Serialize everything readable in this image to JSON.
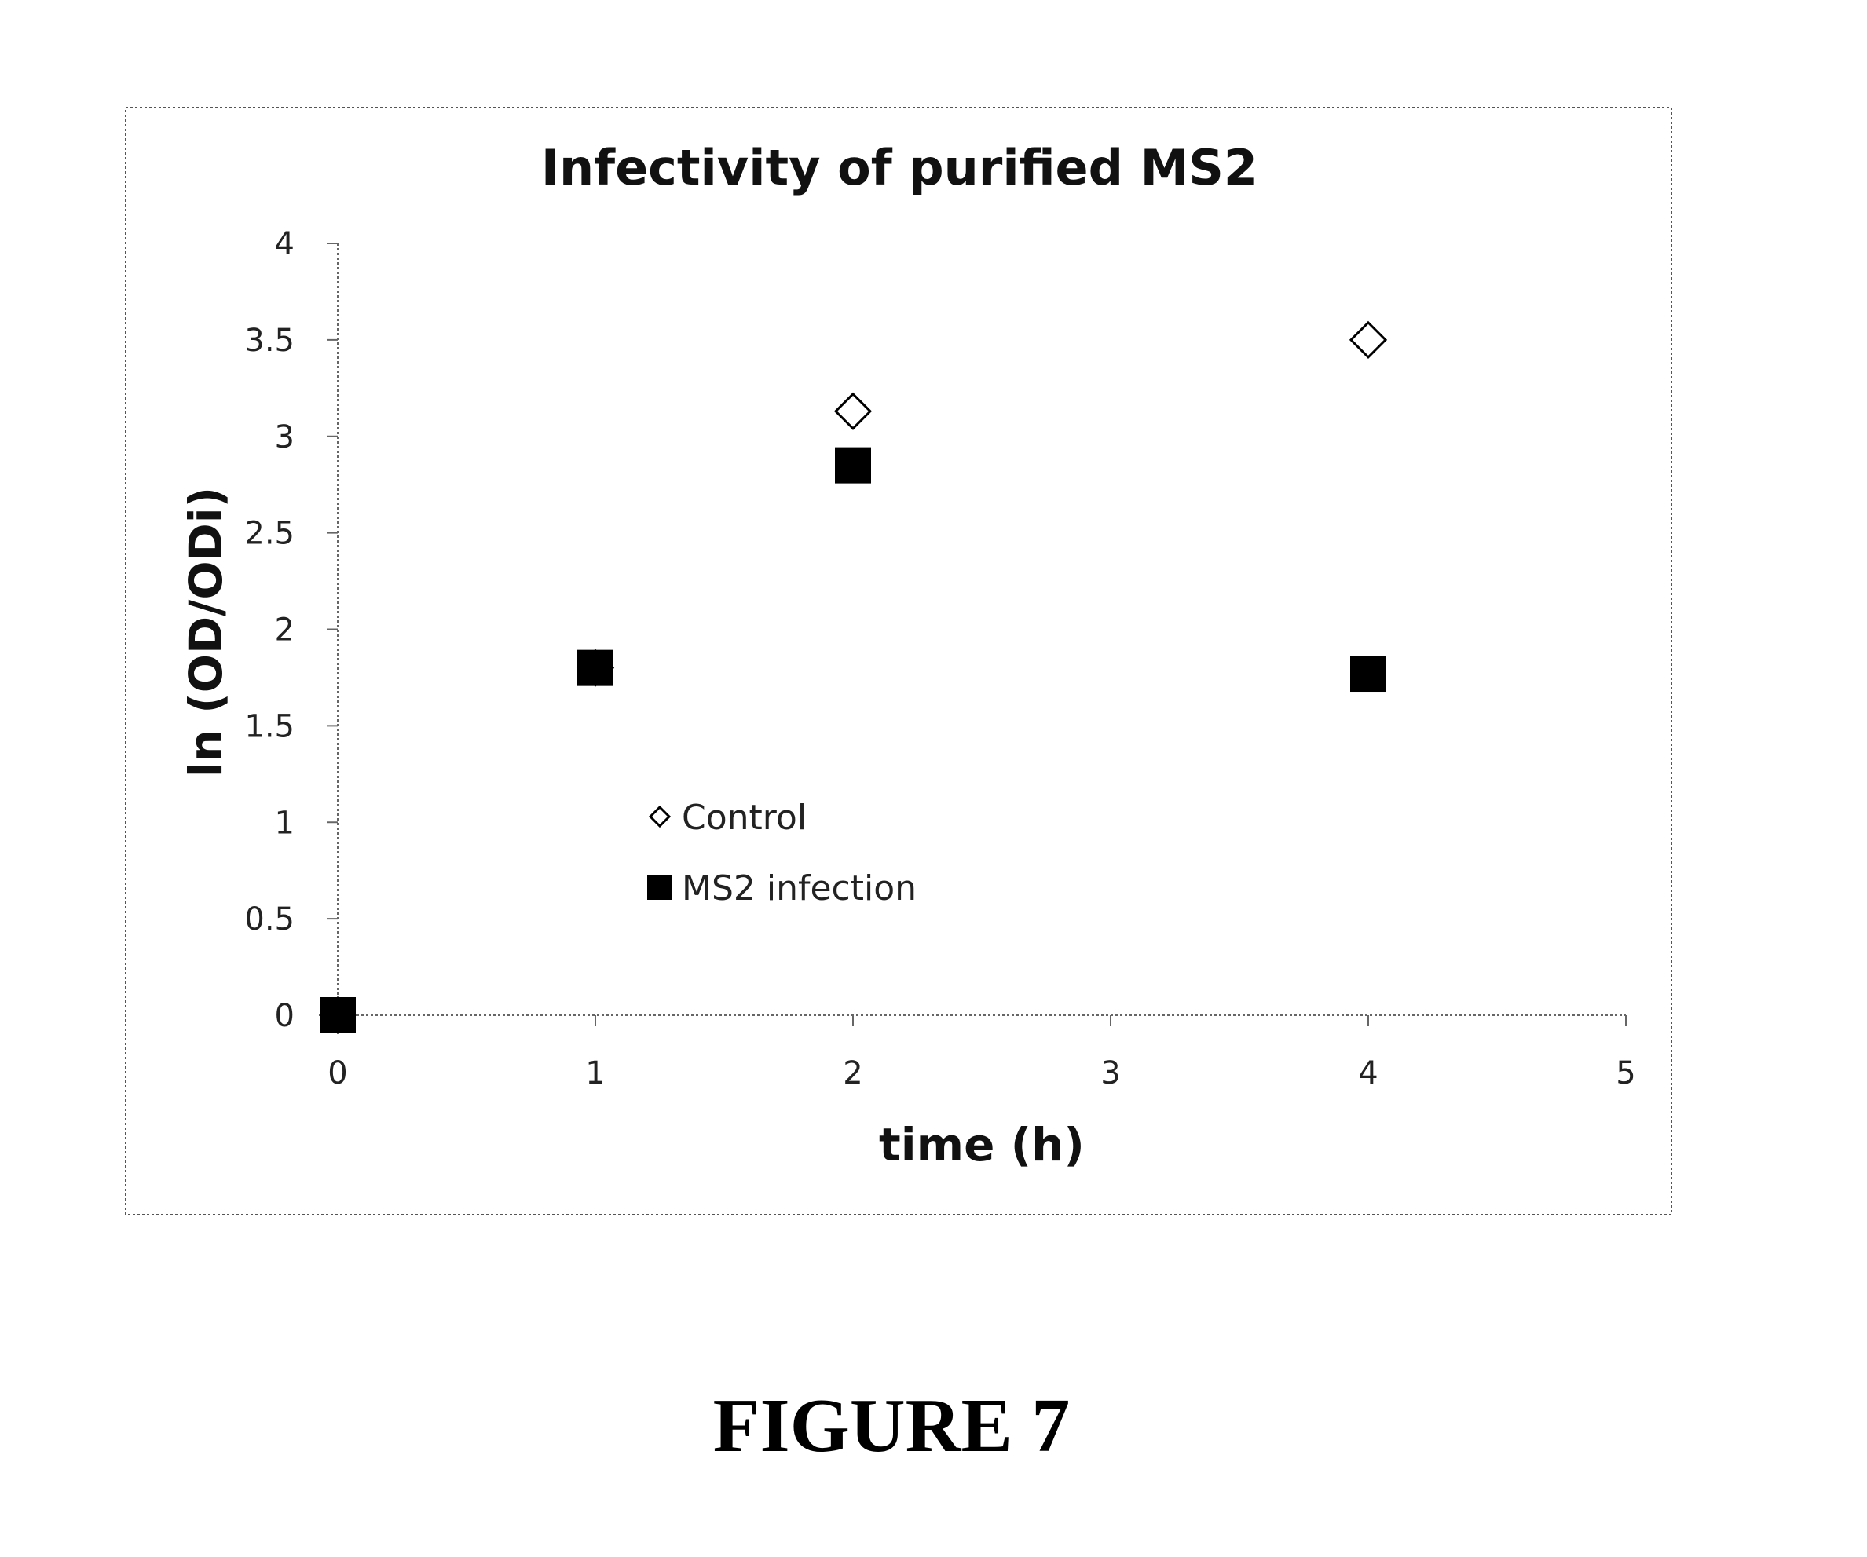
{
  "chart_data": {
    "type": "scatter",
    "title": "Infectivity of purified MS2",
    "xlabel": "time (h)",
    "ylabel": "ln (OD/ODi)",
    "xlim": [
      0,
      5
    ],
    "ylim": [
      0,
      4
    ],
    "x_ticks": [
      "0",
      "1",
      "2",
      "3",
      "4",
      "5"
    ],
    "y_ticks": [
      "0",
      "0.5",
      "1",
      "1.5",
      "2",
      "2.5",
      "3",
      "3.5",
      "4"
    ],
    "grid": false,
    "legend_position": "center-left",
    "series": [
      {
        "name": "Control",
        "marker": "open-diamond",
        "color": "#000000",
        "points": [
          {
            "x": 0,
            "y": 0
          },
          {
            "x": 1,
            "y": 1.8
          },
          {
            "x": 2,
            "y": 3.13
          },
          {
            "x": 4,
            "y": 3.5
          }
        ]
      },
      {
        "name": "MS2 infection",
        "marker": "filled-square",
        "color": "#000000",
        "points": [
          {
            "x": 0,
            "y": 0
          },
          {
            "x": 1,
            "y": 1.8
          },
          {
            "x": 2,
            "y": 2.85
          },
          {
            "x": 4,
            "y": 1.77
          }
        ]
      }
    ]
  },
  "figure_caption": "FIGURE 7"
}
